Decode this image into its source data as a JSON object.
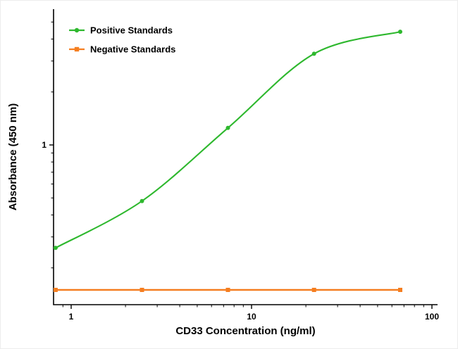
{
  "chart_data": {
    "type": "line",
    "title": "",
    "xlabel": "CD33 Concentration (ng/ml)",
    "ylabel": "Absorbance (450 nm)",
    "x_scale": "log",
    "y_scale": "log",
    "xlim": [
      0.8,
      107
    ],
    "ylim": [
      0.12,
      5.9
    ],
    "x_ticks": [
      1,
      10,
      100
    ],
    "x_tick_labels": [
      "1",
      "10",
      "100"
    ],
    "x_minor_ticks": [
      0.9,
      2,
      3,
      4,
      5,
      6,
      7,
      8,
      9,
      20,
      30,
      40,
      50,
      60,
      70,
      80,
      90
    ],
    "y_ticks": [
      1
    ],
    "y_tick_labels": [
      "1"
    ],
    "y_minor_ticks": [
      0.2,
      0.3,
      0.4,
      0.5,
      0.6,
      0.7,
      0.8,
      0.9,
      2,
      3,
      4,
      5
    ],
    "grid": false,
    "legend_position": "top-left",
    "series": [
      {
        "name": "Positive Standards",
        "color": "#2eb82e",
        "marker": "circle",
        "line": "smooth",
        "x": [
          0.82,
          2.47,
          7.4,
          22.2,
          66.7
        ],
        "y": [
          0.26,
          0.48,
          1.25,
          3.3,
          4.4
        ]
      },
      {
        "name": "Negative Standards",
        "color": "#f57e20",
        "marker": "square",
        "line": "straight",
        "x": [
          0.82,
          2.47,
          7.4,
          22.2,
          66.7
        ],
        "y": [
          0.15,
          0.15,
          0.15,
          0.15,
          0.15
        ]
      }
    ]
  },
  "colors": {
    "axis": "#000000",
    "text": "#000000",
    "background": "#ffffff"
  }
}
